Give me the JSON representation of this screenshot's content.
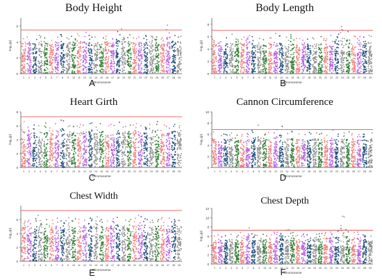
{
  "chart_data": [
    {
      "type": "scatter",
      "title": "Body Height",
      "panel_letter": "A",
      "xlabel": "Chromosome",
      "ylabel": "-log₁₀(p)",
      "ylim": [
        0,
        7
      ],
      "yticks": [
        0,
        2,
        4,
        6
      ],
      "threshold": 5.5,
      "x_categories": [
        "1",
        "2",
        "3",
        "4",
        "5",
        "6",
        "7",
        "8",
        "9",
        "10",
        "11",
        "12",
        "13",
        "14",
        "15",
        "16",
        "17",
        "18",
        "19",
        "20",
        "21",
        "22",
        "23",
        "24",
        "25",
        "26",
        "27",
        "28",
        "29"
      ],
      "base_level": 3.0,
      "peak_values": [
        4.4,
        4.6,
        4.3,
        4.8,
        4.5,
        4.2,
        4.6,
        4.9,
        4.5,
        4.7,
        5.0,
        5.2,
        4.8,
        4.6,
        4.5,
        4.7,
        4.4,
        5.3,
        5.6,
        4.9,
        4.5,
        4.6,
        4.8,
        4.7,
        4.6,
        4.5,
        6.1,
        4.8,
        4.7
      ],
      "legend": "none",
      "grid": false
    },
    {
      "type": "scatter",
      "title": "Body Length",
      "panel_letter": "B",
      "xlabel": "Chromosome",
      "ylabel": "-log₁₀(p)",
      "ylim": [
        0,
        9
      ],
      "yticks": [
        0,
        2,
        4,
        6,
        8
      ],
      "threshold": 7.0,
      "x_categories": [
        "1",
        "2",
        "3",
        "4",
        "5",
        "6",
        "7",
        "8",
        "9",
        "10",
        "11",
        "12",
        "13",
        "14",
        "15",
        "16",
        "17",
        "18",
        "19",
        "20",
        "21",
        "22",
        "23",
        "24",
        "25",
        "26",
        "27",
        "28",
        "29"
      ],
      "base_level": 3.6,
      "peak_values": [
        5.6,
        5.2,
        5.8,
        6.4,
        5.6,
        5.9,
        6.2,
        6.0,
        5.7,
        5.5,
        5.8,
        6.5,
        6.1,
        5.9,
        6.3,
        5.7,
        5.4,
        5.6,
        5.8,
        6.0,
        5.7,
        6.2,
        6.4,
        7.6,
        6.8,
        6.1,
        6.0,
        5.9,
        6.2
      ],
      "legend": "none",
      "grid": false
    },
    {
      "type": "scatter",
      "title": "Heart Girth",
      "panel_letter": "C",
      "xlabel": "Chromosome",
      "ylabel": "-log₁₀(p)",
      "ylim": [
        0,
        8
      ],
      "yticks": [
        0,
        2,
        4,
        6,
        8
      ],
      "threshold": 7.3,
      "x_categories": [
        "1",
        "2",
        "3",
        "4",
        "5",
        "6",
        "7",
        "8",
        "9",
        "10",
        "11",
        "12",
        "13",
        "14",
        "15",
        "16",
        "17",
        "18",
        "19",
        "20",
        "21",
        "22",
        "23",
        "24",
        "25",
        "26",
        "27",
        "28",
        "29"
      ],
      "base_level": 3.8,
      "peak_values": [
        6.6,
        5.8,
        6.1,
        6.0,
        6.4,
        5.7,
        6.3,
        6.8,
        6.0,
        5.9,
        6.2,
        6.1,
        6.4,
        5.8,
        6.3,
        6.0,
        6.2,
        6.5,
        5.9,
        6.1,
        6.3,
        6.0,
        5.8,
        6.2,
        6.6,
        6.1,
        5.9,
        6.2,
        6.0
      ],
      "legend": "none",
      "grid": false
    },
    {
      "type": "scatter",
      "title": "Cannon Circumference",
      "panel_letter": "D",
      "xlabel": "Chromosome",
      "ylabel": "-log₁₀(p)",
      "ylim": [
        0,
        10
      ],
      "yticks": [
        0,
        2,
        4,
        6,
        8,
        10
      ],
      "threshold": 6.8,
      "x_categories": [
        "1",
        "2",
        "3",
        "4",
        "5",
        "6",
        "7",
        "8",
        "9",
        "10",
        "11",
        "12",
        "13",
        "14",
        "15",
        "16",
        "17",
        "18",
        "19",
        "20",
        "21",
        "22",
        "23",
        "24",
        "25",
        "26",
        "27",
        "28",
        "29"
      ],
      "base_level": 3.6,
      "peak_values": [
        6.4,
        5.7,
        6.0,
        6.2,
        5.8,
        5.9,
        6.1,
        6.6,
        7.6,
        6.0,
        6.3,
        6.8,
        7.4,
        6.1,
        6.5,
        6.0,
        5.9,
        6.3,
        6.2,
        6.1,
        5.8,
        6.7,
        6.0,
        6.2,
        6.4,
        6.1,
        5.9,
        6.0,
        6.2
      ],
      "legend": "none",
      "grid": false
    },
    {
      "type": "scatter",
      "title": "Chest Width",
      "panel_letter": "E",
      "xlabel": "Chromosome",
      "ylabel": "-log₁₀(p)",
      "ylim": [
        0,
        8
      ],
      "yticks": [
        0,
        2,
        4,
        6
      ],
      "threshold": 7.3,
      "x_categories": [
        "1",
        "2",
        "3",
        "4",
        "5",
        "6",
        "7",
        "8",
        "9",
        "10",
        "11",
        "12",
        "13",
        "14",
        "15",
        "16",
        "17",
        "18",
        "19",
        "20",
        "21",
        "22",
        "23",
        "24",
        "25",
        "26",
        "27",
        "28",
        "29"
      ],
      "base_level": 3.7,
      "peak_values": [
        5.8,
        5.9,
        6.1,
        6.6,
        6.0,
        5.9,
        6.2,
        5.8,
        6.3,
        6.1,
        6.0,
        5.9,
        6.2,
        6.4,
        6.0,
        5.8,
        6.1,
        6.3,
        5.9,
        6.0,
        6.2,
        6.6,
        6.1,
        5.9,
        6.0,
        6.3,
        6.2,
        6.0,
        5.9
      ],
      "legend": "none",
      "grid": false
    },
    {
      "type": "scatter",
      "title": "Chest Depth",
      "panel_letter": "F",
      "xlabel": "Chromosome",
      "ylabel": "-log₁₀(p)",
      "ylim": [
        0,
        12
      ],
      "yticks": [
        0,
        2,
        4,
        6,
        8,
        10,
        12
      ],
      "threshold": 7.3,
      "x_categories": [
        "1",
        "2",
        "3",
        "4",
        "5",
        "6",
        "7",
        "8",
        "9",
        "10",
        "11",
        "12",
        "13",
        "14",
        "15",
        "16",
        "17",
        "18",
        "19",
        "20",
        "21",
        "22",
        "23",
        "24",
        "25",
        "26",
        "27",
        "28",
        "29"
      ],
      "base_level": 3.9,
      "peak_values": [
        6.0,
        6.3,
        6.1,
        6.4,
        6.2,
        6.8,
        7.8,
        6.5,
        6.2,
        6.4,
        6.3,
        6.9,
        6.6,
        7.4,
        6.8,
        6.2,
        6.5,
        6.3,
        6.4,
        6.6,
        6.8,
        6.9,
        7.1,
        10.3,
        7.4,
        6.8,
        6.9,
        6.3,
        6.0
      ],
      "legend": "none",
      "grid": false
    }
  ],
  "palette": [
    "#f07e7a",
    "#b561e0",
    "#1f4f7b",
    "#8d8d8d",
    "#2e7d32"
  ],
  "threshold_color": "#e23a3a"
}
